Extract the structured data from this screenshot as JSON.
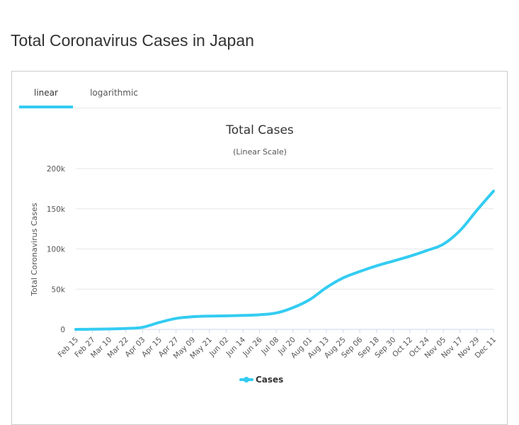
{
  "page": {
    "title": "Total Coronavirus Cases in Japan"
  },
  "tabs": [
    {
      "label": "linear",
      "active": true
    },
    {
      "label": "logarithmic",
      "active": false
    }
  ],
  "colors": {
    "accent": "#33ccf2",
    "series": "#33ccf2",
    "grid": "#e6e6e6",
    "axis": "#ccd6eb"
  },
  "chart_data": {
    "type": "line",
    "title": "Total Cases",
    "subtitle": "(Linear Scale)",
    "ylabel": "Total Coronavirus Cases",
    "xlabel": "",
    "ylim": [
      0,
      200000
    ],
    "yticks": [
      {
        "value": 0,
        "label": "0"
      },
      {
        "value": 50000,
        "label": "50k"
      },
      {
        "value": 100000,
        "label": "100k"
      },
      {
        "value": 150000,
        "label": "150k"
      },
      {
        "value": 200000,
        "label": "200k"
      }
    ],
    "grid": true,
    "legend": "bottom-center",
    "categories": [
      "Feb 15",
      "Feb 27",
      "Mar 10",
      "Mar 22",
      "Apr 03",
      "Apr 15",
      "Apr 27",
      "May 09",
      "May 21",
      "Jun 02",
      "Jun 14",
      "Jun 26",
      "Jul 08",
      "Jul 20",
      "Aug 01",
      "Aug 13",
      "Aug 25",
      "Sep 06",
      "Sep 18",
      "Sep 30",
      "Oct 12",
      "Oct 24",
      "Nov 05",
      "Nov 17",
      "Nov 29",
      "Dec 11"
    ],
    "series": [
      {
        "name": "Cases",
        "values": [
          53,
          210,
          600,
          1100,
          2600,
          8600,
          13600,
          15700,
          16500,
          16900,
          17400,
          18200,
          20400,
          27000,
          37000,
          52000,
          64000,
          72000,
          79000,
          85000,
          91000,
          98000,
          106000,
          123000,
          148000,
          172000
        ]
      }
    ]
  }
}
